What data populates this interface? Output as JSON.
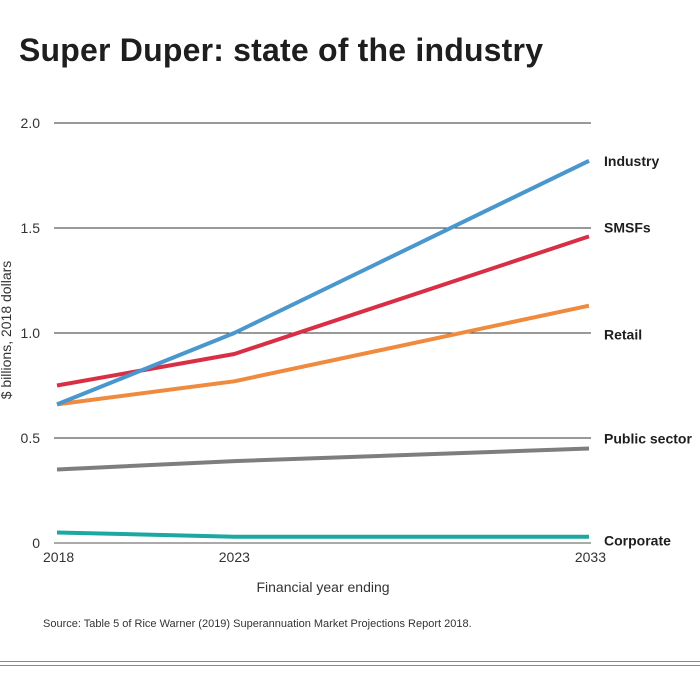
{
  "title": "Super Duper: state of the industry",
  "source": "Source: Table 5 of Rice Warner (2019) Superannuation Market Projections Report 2018.",
  "chart_data": {
    "type": "line",
    "title": "Super Duper: state of the industry",
    "xlabel": "Financial year ending",
    "ylabel": "$ billions, 2018 dollars",
    "x": [
      2018,
      2023,
      2033
    ],
    "x_tick_labels": [
      "2018",
      "2023",
      "2033"
    ],
    "y_ticks": [
      0,
      0.5,
      1.0,
      1.5,
      2.0
    ],
    "y_tick_labels": [
      "0",
      "0.5",
      "1.0",
      "1.5",
      "2.0"
    ],
    "ylim": [
      0,
      2.0
    ],
    "grid": true,
    "legend_placement": "right, inline labels",
    "series": [
      {
        "name": "Industry",
        "color": "#4a97cd",
        "values": [
          0.66,
          1.0,
          1.82
        ]
      },
      {
        "name": "SMSFs",
        "color": "#d92f45",
        "values": [
          0.75,
          0.9,
          1.46
        ]
      },
      {
        "name": "Retail",
        "color": "#ef8a3f",
        "values": [
          0.66,
          0.77,
          1.13
        ]
      },
      {
        "name": "Public sector",
        "color": "#7e7e7e",
        "values": [
          0.35,
          0.39,
          0.45
        ]
      },
      {
        "name": "Corporate",
        "color": "#1aa8a0",
        "values": [
          0.05,
          0.03,
          0.03
        ]
      }
    ]
  }
}
